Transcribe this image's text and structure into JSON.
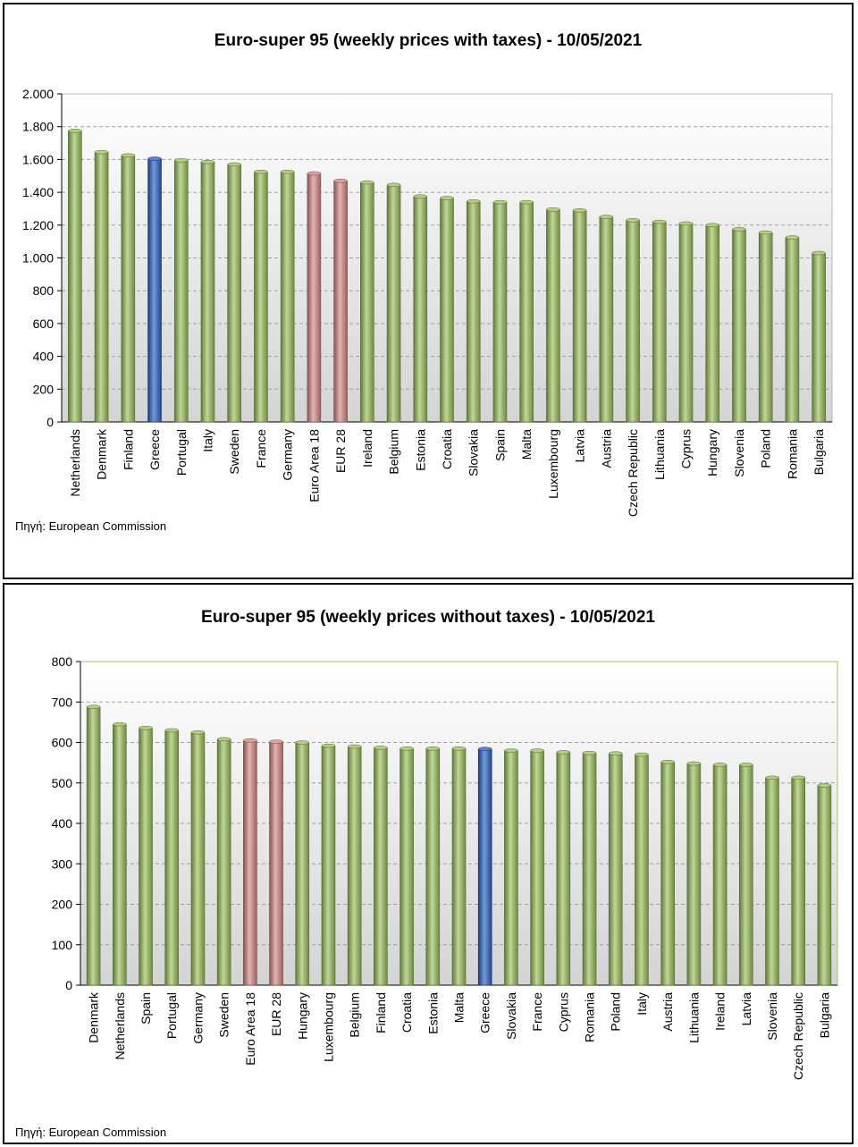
{
  "source_label": "Πηγή: European Commission",
  "colors": {
    "default": "#9dc35d",
    "greece": "#2e62c8",
    "eu": "#d88a88",
    "plot_border": "#9dc35d"
  },
  "chart_data": [
    {
      "type": "bar",
      "title": "Euro-super 95 (weekly prices with taxes) - 10/05/2021",
      "xlabel": "",
      "ylabel": "",
      "ylim": [
        0,
        2000
      ],
      "yticks": [
        0,
        200,
        400,
        600,
        800,
        1000,
        1200,
        1400,
        1600,
        1800,
        2000
      ],
      "ytick_labels": [
        "0",
        "200",
        "400",
        "600",
        "800",
        "1.000",
        "1.200",
        "1.400",
        "1.600",
        "1.800",
        "2.000"
      ],
      "grid": true,
      "categories": [
        "Netherlands",
        "Denmark",
        "Finland",
        "Greece",
        "Portugal",
        "Italy",
        "Sweden",
        "France",
        "Germany",
        "Euro Area 18",
        "EUR 28",
        "Ireland",
        "Belgium",
        "Estonia",
        "Croatia",
        "Slovakia",
        "Spain",
        "Malta",
        "Luxembourg",
        "Latvia",
        "Austria",
        "Czech Republic",
        "Lithuania",
        "Cyprus",
        "Hungary",
        "Slovenia",
        "Poland",
        "Romania",
        "Bulgaria"
      ],
      "values": [
        1775,
        1645,
        1625,
        1605,
        1595,
        1585,
        1570,
        1525,
        1525,
        1515,
        1470,
        1460,
        1445,
        1375,
        1365,
        1345,
        1340,
        1340,
        1295,
        1290,
        1250,
        1230,
        1220,
        1210,
        1200,
        1175,
        1155,
        1125,
        1030
      ],
      "highlight": {
        "Greece": "greece",
        "Euro Area 18": "eu",
        "EUR 28": "eu"
      }
    },
    {
      "type": "bar",
      "title": "Euro-super 95 (weekly prices without taxes) - 10/05/2021",
      "xlabel": "",
      "ylabel": "",
      "ylim": [
        0,
        800
      ],
      "yticks": [
        0,
        100,
        200,
        300,
        400,
        500,
        600,
        700,
        800
      ],
      "ytick_labels": [
        "0",
        "100",
        "200",
        "300",
        "400",
        "500",
        "600",
        "700",
        "800"
      ],
      "grid": true,
      "categories": [
        "Denmark",
        "Netherlands",
        "Spain",
        "Portugal",
        "Germany",
        "Sweden",
        "Euro Area 18",
        "EUR 28",
        "Hungary",
        "Luxembourg",
        "Belgium",
        "Finland",
        "Croatia",
        "Estonia",
        "Malta",
        "Greece",
        "Slovakia",
        "France",
        "Cyprus",
        "Romania",
        "Poland",
        "Italy",
        "Austria",
        "Lithuania",
        "Ireland",
        "Latvia",
        "Slovenia",
        "Czech Republic",
        "Bulgaria"
      ],
      "values": [
        688,
        645,
        636,
        630,
        625,
        608,
        605,
        602,
        600,
        592,
        590,
        587,
        585,
        585,
        585,
        584,
        580,
        580,
        576,
        574,
        573,
        570,
        552,
        548,
        545,
        545,
        513,
        513,
        494
      ],
      "highlight": {
        "Greece": "greece",
        "Euro Area 18": "eu",
        "EUR 28": "eu"
      }
    }
  ]
}
